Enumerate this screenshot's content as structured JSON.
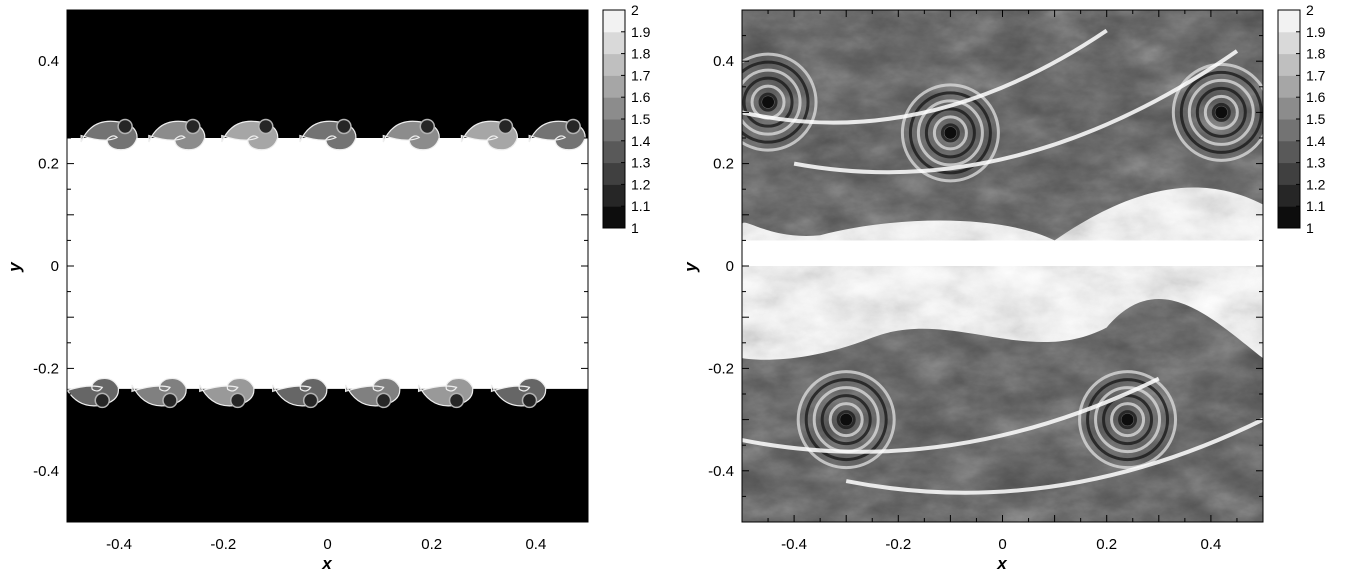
{
  "chart_data": [
    {
      "type": "heatmap",
      "xlabel": "x",
      "ylabel": "y",
      "xlim": [
        -0.5,
        0.5
      ],
      "ylim": [
        -0.5,
        0.5
      ],
      "xticks": [
        "-0.4",
        "-0.2",
        "0",
        "0.2",
        "0.4"
      ],
      "yticks": [
        "-0.4",
        "-0.2",
        "0",
        "0.2",
        "0.4"
      ],
      "colorbar": {
        "ticks": [
          "1",
          "1.1",
          "1.2",
          "1.3",
          "1.4",
          "1.5",
          "1.6",
          "1.7",
          "1.8",
          "1.9",
          "2"
        ],
        "range": [
          1,
          2
        ],
        "colormap": "grayscale"
      },
      "field": {
        "background": 1.0,
        "band_value": 2.0,
        "band_y": [
          -0.24,
          0.25
        ],
        "interface_mixing_depth": 0.05,
        "upper_billow_centers_x": [
          -0.4,
          -0.27,
          -0.13,
          0.02,
          0.18,
          0.33,
          0.46
        ],
        "lower_billow_centers_x": [
          -0.44,
          -0.31,
          -0.18,
          -0.04,
          0.1,
          0.24,
          0.38
        ]
      }
    },
    {
      "type": "heatmap",
      "xlabel": "x",
      "ylabel": "y",
      "xlim": [
        -0.5,
        0.5
      ],
      "ylim": [
        -0.5,
        0.5
      ],
      "xticks": [
        "-0.4",
        "-0.2",
        "0",
        "0.2",
        "0.4"
      ],
      "yticks": [
        "-0.4",
        "-0.2",
        "0",
        "0.2",
        "0.4"
      ],
      "colorbar": {
        "ticks": [
          "1",
          "1.1",
          "1.2",
          "1.3",
          "1.4",
          "1.5",
          "1.6",
          "1.7",
          "1.8",
          "1.9",
          "2"
        ],
        "range": [
          1,
          2
        ],
        "colormap": "grayscale"
      },
      "field": {
        "background": 1.0,
        "band_value": 2.0,
        "upper_vortex_centers": [
          [
            -0.45,
            0.32
          ],
          [
            -0.1,
            0.26
          ],
          [
            0.42,
            0.3
          ]
        ],
        "lower_vortex_centers": [
          [
            -0.3,
            -0.3
          ],
          [
            0.24,
            -0.3
          ]
        ],
        "mixing_layer_upper_y": [
          0.05,
          0.5
        ],
        "mixing_layer_lower_y": [
          -0.5,
          0.0
        ]
      }
    }
  ]
}
